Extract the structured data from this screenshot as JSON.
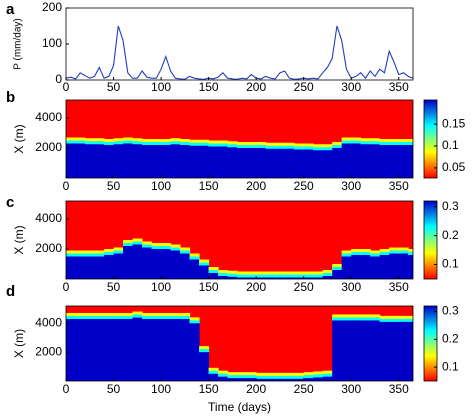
{
  "chart_data": [
    {
      "type": "line",
      "label": "a",
      "ylabel": "P (mm/day)",
      "color": "#1f3fbf",
      "x": [
        0,
        5,
        10,
        15,
        20,
        25,
        30,
        35,
        40,
        45,
        50,
        55,
        60,
        65,
        70,
        75,
        80,
        85,
        90,
        95,
        100,
        105,
        110,
        115,
        120,
        125,
        130,
        135,
        140,
        145,
        150,
        155,
        160,
        165,
        170,
        175,
        180,
        185,
        190,
        195,
        200,
        205,
        210,
        215,
        220,
        225,
        230,
        235,
        240,
        245,
        250,
        255,
        260,
        265,
        270,
        275,
        280,
        285,
        290,
        295,
        300,
        305,
        310,
        315,
        320,
        325,
        330,
        335,
        340,
        345,
        350,
        355,
        360,
        365
      ],
      "values": [
        5,
        8,
        3,
        20,
        12,
        5,
        10,
        35,
        5,
        10,
        40,
        150,
        110,
        20,
        5,
        5,
        25,
        8,
        5,
        5,
        30,
        65,
        25,
        5,
        3,
        2,
        10,
        5,
        3,
        2,
        5,
        3,
        8,
        20,
        5,
        3,
        2,
        5,
        3,
        15,
        5,
        3,
        10,
        5,
        3,
        20,
        25,
        5,
        2,
        3,
        5,
        3,
        5,
        3,
        20,
        35,
        60,
        150,
        110,
        30,
        5,
        10,
        20,
        5,
        25,
        10,
        30,
        20,
        80,
        50,
        15,
        20,
        10,
        5
      ],
      "xlim": [
        0,
        365
      ],
      "ylim": [
        0,
        200
      ],
      "yticks": [
        0,
        100,
        200
      ],
      "xticks": [
        0,
        50,
        100,
        150,
        200,
        250,
        300,
        350
      ]
    },
    {
      "type": "heatmap",
      "label": "b",
      "ylabel": "X (m)",
      "x": [
        0,
        10,
        20,
        30,
        40,
        50,
        60,
        70,
        80,
        90,
        100,
        110,
        120,
        130,
        140,
        150,
        160,
        170,
        180,
        190,
        200,
        210,
        220,
        230,
        240,
        250,
        260,
        270,
        280,
        290,
        300,
        310,
        320,
        330,
        340,
        350,
        360
      ],
      "front": [
        2300,
        2300,
        2250,
        2250,
        2200,
        2250,
        2300,
        2250,
        2200,
        2200,
        2200,
        2250,
        2200,
        2150,
        2150,
        2100,
        2100,
        2050,
        2000,
        2000,
        2000,
        1950,
        1950,
        1950,
        1900,
        1900,
        1850,
        1850,
        2000,
        2300,
        2300,
        2250,
        2250,
        2200,
        2200,
        2200,
        2200
      ],
      "xlim": [
        0,
        365
      ],
      "ylim": [
        0,
        5200
      ],
      "yticks": [
        2000,
        4000
      ],
      "xticks": [
        0,
        50,
        100,
        150,
        200,
        250,
        300,
        350
      ],
      "colorbar": {
        "lim": [
          0.027,
          0.205
        ],
        "ticks": [
          0.05,
          0.1,
          0.15
        ],
        "colors": [
          "#ff0000",
          "#ffff00",
          "#00ffff",
          "#0000c8"
        ]
      }
    },
    {
      "type": "heatmap",
      "label": "c",
      "ylabel": "X (m)",
      "x": [
        0,
        10,
        20,
        30,
        40,
        50,
        60,
        70,
        80,
        90,
        100,
        110,
        120,
        130,
        140,
        150,
        160,
        170,
        180,
        190,
        200,
        210,
        220,
        230,
        240,
        250,
        260,
        270,
        280,
        290,
        300,
        310,
        320,
        330,
        340,
        350,
        360
      ],
      "front": [
        1500,
        1500,
        1500,
        1500,
        1600,
        1700,
        2200,
        2300,
        2100,
        2000,
        2000,
        1900,
        1700,
        1300,
        900,
        400,
        200,
        150,
        100,
        100,
        100,
        100,
        100,
        100,
        100,
        100,
        100,
        200,
        600,
        1500,
        1600,
        1600,
        1500,
        1600,
        1700,
        1700,
        1600
      ],
      "xlim": [
        0,
        365
      ],
      "ylim": [
        0,
        5200
      ],
      "yticks": [
        2000,
        4000
      ],
      "xticks": [
        0,
        50,
        100,
        150,
        200,
        250,
        300,
        350
      ],
      "colorbar": {
        "lim": [
          0.05,
          0.32
        ],
        "ticks": [
          0.1,
          0.2,
          0.3
        ],
        "colors": [
          "#ff0000",
          "#ffff00",
          "#00ffff",
          "#0000c8"
        ]
      }
    },
    {
      "type": "heatmap",
      "label": "d",
      "ylabel": "X (m)",
      "xlabel": "Time (days)",
      "x": [
        0,
        10,
        20,
        30,
        40,
        50,
        60,
        70,
        80,
        90,
        100,
        110,
        120,
        130,
        140,
        150,
        160,
        170,
        180,
        190,
        200,
        210,
        220,
        230,
        240,
        250,
        260,
        270,
        280,
        290,
        300,
        310,
        320,
        330,
        340,
        350,
        360
      ],
      "front": [
        4300,
        4300,
        4300,
        4300,
        4300,
        4300,
        4300,
        4400,
        4300,
        4300,
        4300,
        4300,
        4300,
        4000,
        2000,
        500,
        300,
        200,
        200,
        200,
        150,
        150,
        150,
        150,
        150,
        200,
        250,
        300,
        4200,
        4200,
        4200,
        4200,
        4200,
        4100,
        4100,
        4100,
        4100
      ],
      "xlim": [
        0,
        365
      ],
      "ylim": [
        0,
        5200
      ],
      "yticks": [
        2000,
        4000
      ],
      "xticks": [
        0,
        50,
        100,
        150,
        200,
        250,
        300,
        350
      ],
      "colorbar": {
        "lim": [
          0.05,
          0.32
        ],
        "ticks": [
          0.1,
          0.2,
          0.3
        ],
        "colors": [
          "#ff0000",
          "#ffff00",
          "#00ffff",
          "#0000c8"
        ]
      }
    }
  ]
}
